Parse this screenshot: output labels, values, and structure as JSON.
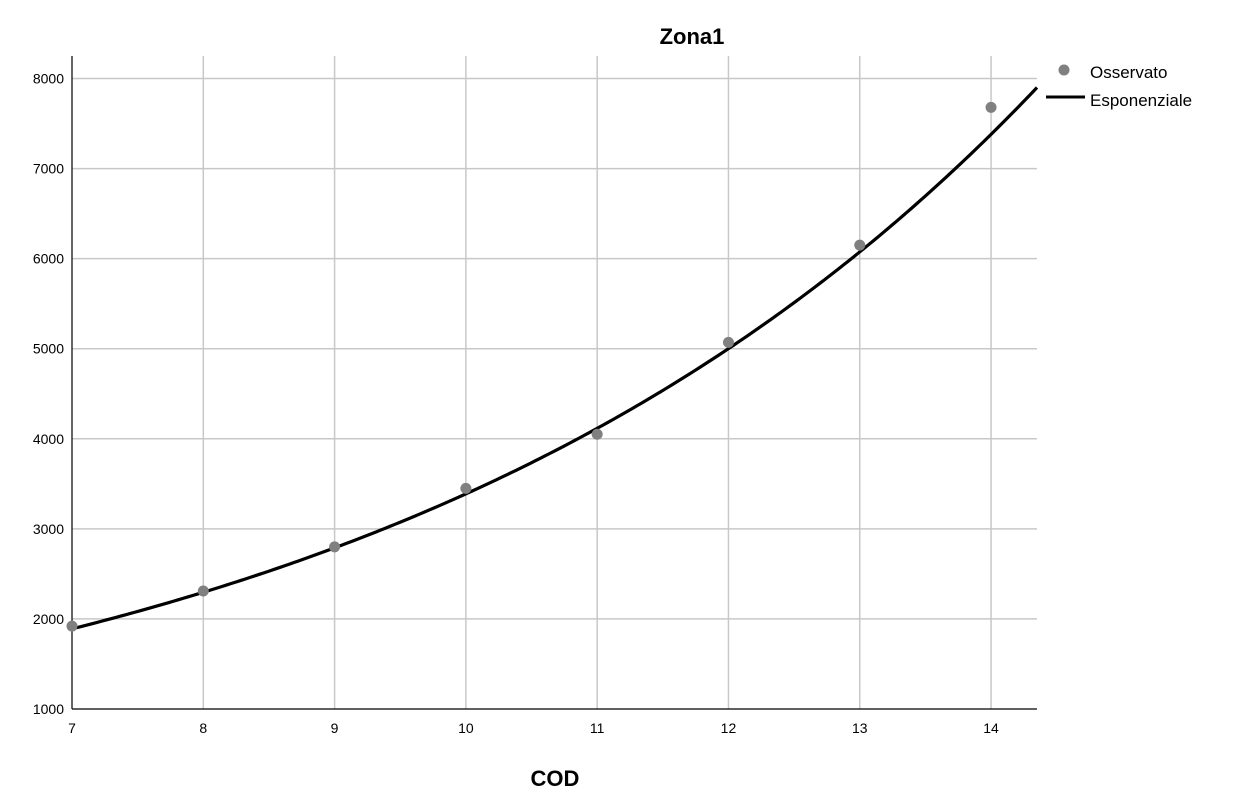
{
  "chart_data": {
    "type": "scatter",
    "title": "Zona1",
    "xlabel": "COD",
    "ylabel": "",
    "xlim": [
      7,
      14.35
    ],
    "ylim": [
      1000,
      8250
    ],
    "x_ticks": [
      7,
      8,
      9,
      10,
      11,
      12,
      13,
      14
    ],
    "y_ticks": [
      1000,
      2000,
      3000,
      4000,
      5000,
      6000,
      7000,
      8000
    ],
    "grid": true,
    "legend_position": "top-right",
    "series": [
      {
        "name": "Osservato",
        "kind": "points",
        "color": "#808080",
        "x": [
          7,
          8,
          9,
          10,
          11,
          12,
          13,
          14
        ],
        "y": [
          1920,
          2310,
          2800,
          3450,
          4050,
          5070,
          6150,
          7680
        ]
      },
      {
        "name": "Esponenziale",
        "kind": "curve",
        "color": "#000000",
        "model": "exponential",
        "a": 1890,
        "b": 0.1946
      }
    ]
  }
}
